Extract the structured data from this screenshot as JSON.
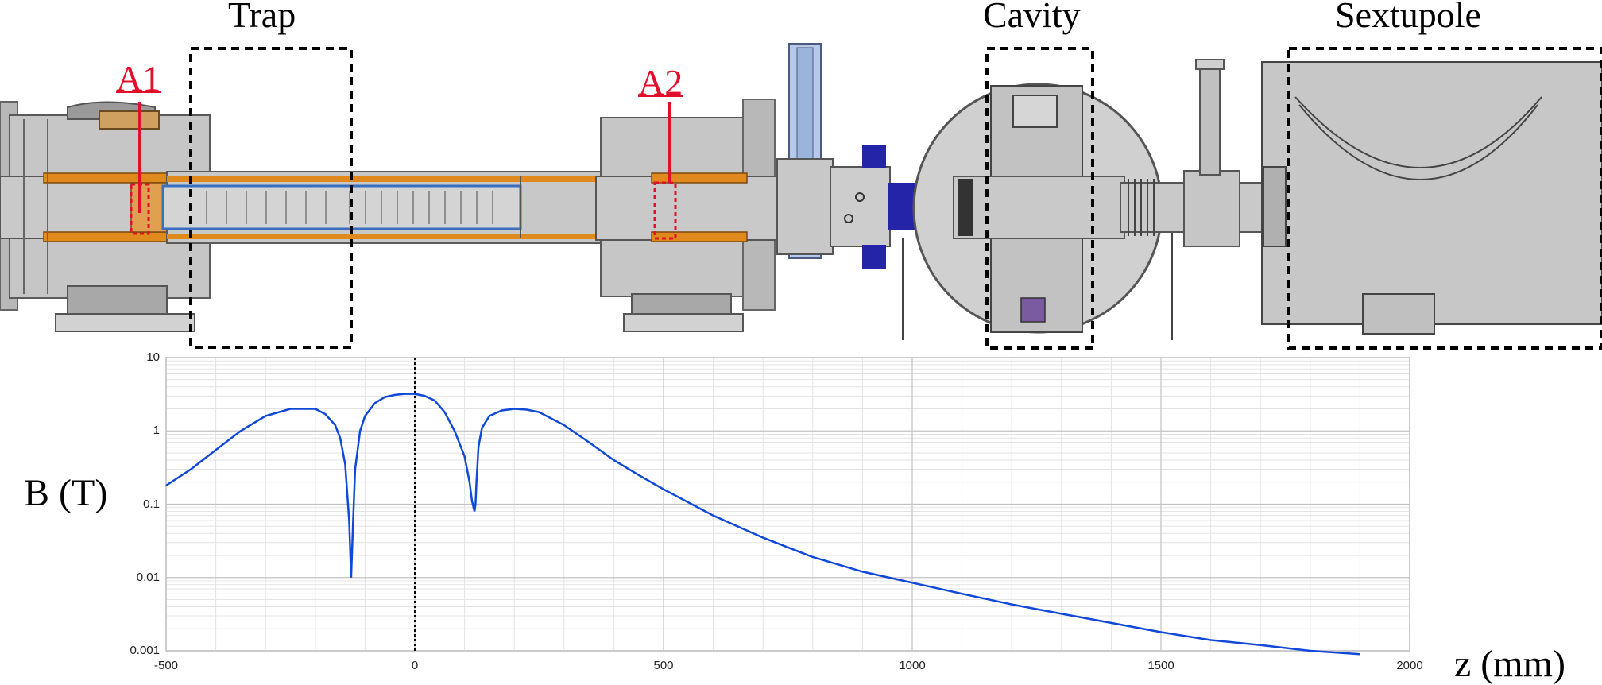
{
  "sections": {
    "trap": "Trap",
    "cavity": "Cavity",
    "sextupole": "Sextupole"
  },
  "markers": {
    "a1": "A1",
    "a2": "A2"
  },
  "colors": {
    "marker": "#e0102a",
    "curve": "#1048d8",
    "steel": "#c3c3c3",
    "copper": "#e08a1e",
    "magnet_blue": "#2424a8",
    "light_blue": "#9bb4dc"
  },
  "chart_data": {
    "type": "line",
    "xlabel": "z (mm)",
    "ylabel": "B (T)",
    "xlim": [
      -500,
      2000
    ],
    "ylim": [
      0.001,
      10
    ],
    "yscale": "log",
    "grid": true,
    "x_ticks": [
      "-500",
      "0",
      "500",
      "1000",
      "1500",
      "2000"
    ],
    "y_ticks": [
      "10",
      "1",
      "0.1",
      "0.01",
      "0.001"
    ],
    "reference_line_x": 0,
    "series": [
      {
        "x": [
          -500,
          -450,
          -400,
          -350,
          -300,
          -250,
          -200,
          -180,
          -160,
          -150,
          -140,
          -132,
          -128,
          -124,
          -120,
          -110,
          -100,
          -80,
          -60,
          -40,
          -20,
          0,
          20,
          40,
          60,
          80,
          100,
          110,
          115,
          120,
          122,
          124,
          128,
          135,
          150,
          175,
          200,
          225,
          250,
          300,
          350,
          400,
          450,
          500,
          600,
          700,
          800,
          900,
          1000,
          1100,
          1200,
          1300,
          1400,
          1500,
          1600,
          1700,
          1800,
          1900
        ],
        "y": [
          0.18,
          0.3,
          0.55,
          1.0,
          1.6,
          2.0,
          2.0,
          1.7,
          1.2,
          0.8,
          0.35,
          0.06,
          0.01,
          0.06,
          0.3,
          1.0,
          1.6,
          2.4,
          2.9,
          3.1,
          3.2,
          3.2,
          3.0,
          2.6,
          1.8,
          1.0,
          0.45,
          0.2,
          0.11,
          0.08,
          0.1,
          0.2,
          0.6,
          1.1,
          1.6,
          1.9,
          2.0,
          1.95,
          1.8,
          1.2,
          0.7,
          0.4,
          0.25,
          0.16,
          0.07,
          0.035,
          0.019,
          0.012,
          0.0085,
          0.006,
          0.0043,
          0.0032,
          0.0024,
          0.0018,
          0.0014,
          0.0012,
          0.001,
          0.0009
        ]
      }
    ]
  }
}
